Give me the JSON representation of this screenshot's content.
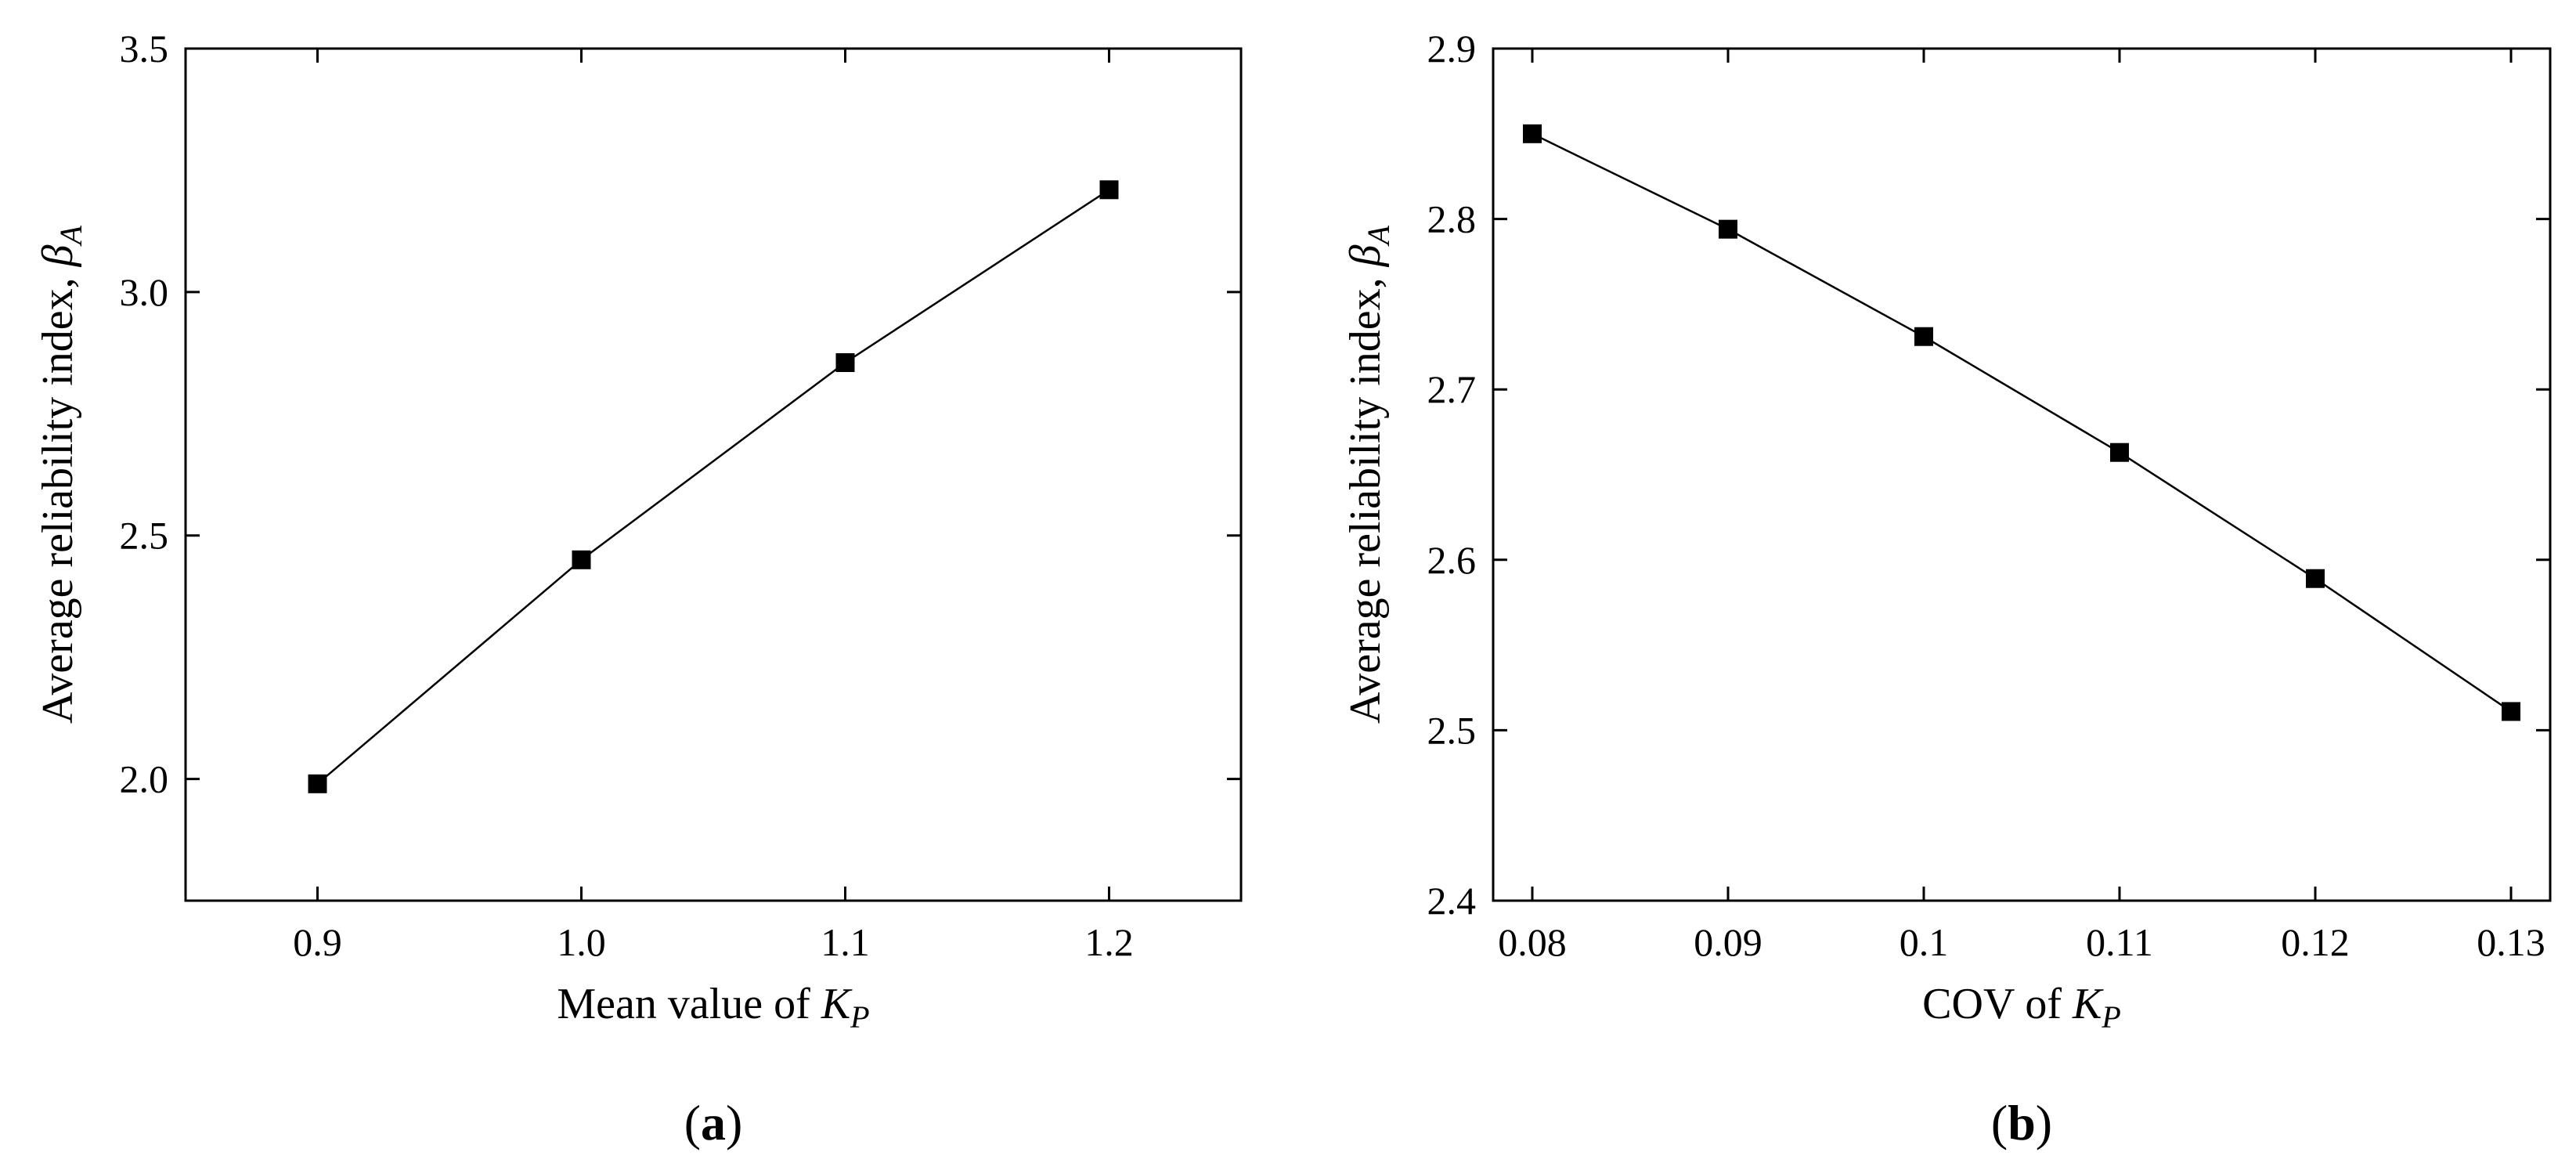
{
  "chart_data": [
    {
      "type": "line",
      "panel_label": "a",
      "xlabel": "Mean value of ",
      "xlabel_symbol": "K",
      "xlabel_subscript": "P",
      "ylabel": "Average reliability index, ",
      "ylabel_symbol": "β",
      "ylabel_subscript": "A",
      "xlim": [
        0.85,
        1.25
      ],
      "ylim": [
        1.75,
        3.5
      ],
      "xticks": [
        0.9,
        1.0,
        1.1,
        1.2
      ],
      "xtick_labels": [
        "0.9",
        "1.0",
        "1.1",
        "1.2"
      ],
      "yticks": [
        2.0,
        2.5,
        3.0,
        3.5
      ],
      "ytick_labels": [
        "2.0",
        "2.5",
        "3.0",
        "3.5"
      ],
      "marker": "square",
      "grid": false,
      "series": [
        {
          "x": [
            0.9,
            1.0,
            1.1,
            1.2
          ],
          "values": [
            1.99,
            2.45,
            2.855,
            3.21
          ]
        }
      ]
    },
    {
      "type": "line",
      "panel_label": "b",
      "xlabel": "COV of ",
      "xlabel_symbol": "K",
      "xlabel_subscript": "P",
      "ylabel": "Average reliability index, ",
      "ylabel_symbol": "β",
      "ylabel_subscript": "A",
      "xlim": [
        0.078,
        0.132
      ],
      "ylim": [
        2.4,
        2.9
      ],
      "xticks": [
        0.08,
        0.09,
        0.1,
        0.11,
        0.12,
        0.13
      ],
      "xtick_labels": [
        "0.08",
        "0.09",
        "0.1",
        "0.11",
        "0.12",
        "0.13"
      ],
      "yticks": [
        2.4,
        2.5,
        2.6,
        2.7,
        2.8,
        2.9
      ],
      "ytick_labels": [
        "2.4",
        "2.5",
        "2.6",
        "2.7",
        "2.8",
        "2.9"
      ],
      "marker": "square",
      "grid": false,
      "series": [
        {
          "x": [
            0.08,
            0.09,
            0.1,
            0.11,
            0.12,
            0.13
          ],
          "values": [
            2.85,
            2.794,
            2.731,
            2.663,
            2.589,
            2.511
          ]
        }
      ]
    }
  ]
}
